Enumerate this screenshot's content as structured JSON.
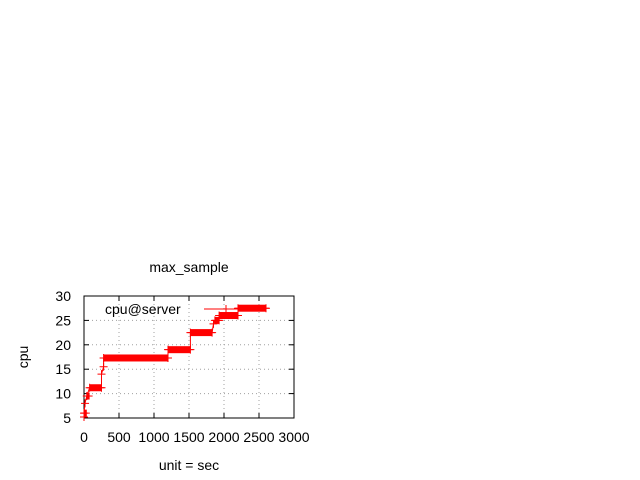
{
  "chart_data": {
    "type": "line",
    "title": "max_sample",
    "xlabel": "unit = sec",
    "ylabel": "cpu",
    "xlim": [
      0,
      3000
    ],
    "ylim": [
      5,
      30
    ],
    "xticks": [
      "0",
      "500",
      "1000",
      "1500",
      "2000",
      "2500",
      "3000"
    ],
    "yticks": [
      "5",
      "10",
      "15",
      "20",
      "25",
      "30"
    ],
    "grid": true,
    "legend_position": "top-left inside",
    "series": [
      {
        "name": "cpu@server",
        "color": "#ff0000",
        "style": "linespoints-plus",
        "segments": [
          {
            "x_start": 0,
            "x_end": 40,
            "y": 6
          },
          {
            "x_start": 40,
            "x_end": 80,
            "y": 9.5
          },
          {
            "x_start": 80,
            "x_end": 250,
            "y": 11.2
          },
          {
            "x_start": 280,
            "x_end": 1200,
            "y": 17.3
          },
          {
            "x_start": 1200,
            "x_end": 1520,
            "y": 19
          },
          {
            "x_start": 1520,
            "x_end": 1830,
            "y": 22.5
          },
          {
            "x_start": 1870,
            "x_end": 1930,
            "y": 25
          },
          {
            "x_start": 1930,
            "x_end": 2200,
            "y": 26
          },
          {
            "x_start": 2200,
            "x_end": 2600,
            "y": 27.5
          }
        ],
        "points": [
          [
            0,
            5.2
          ],
          [
            0,
            6
          ],
          [
            15,
            8
          ],
          [
            40,
            9.5
          ],
          [
            80,
            11.2
          ],
          [
            250,
            11.2
          ],
          [
            250,
            14
          ],
          [
            280,
            15.5
          ],
          [
            280,
            17.3
          ],
          [
            1200,
            17.3
          ],
          [
            1200,
            19
          ],
          [
            1520,
            19
          ],
          [
            1520,
            22.5
          ],
          [
            1830,
            22.5
          ],
          [
            1850,
            24.3
          ],
          [
            1870,
            25
          ],
          [
            1930,
            25
          ],
          [
            1930,
            26
          ],
          [
            2200,
            26
          ],
          [
            2200,
            27.5
          ],
          [
            2600,
            27.5
          ]
        ]
      }
    ]
  }
}
